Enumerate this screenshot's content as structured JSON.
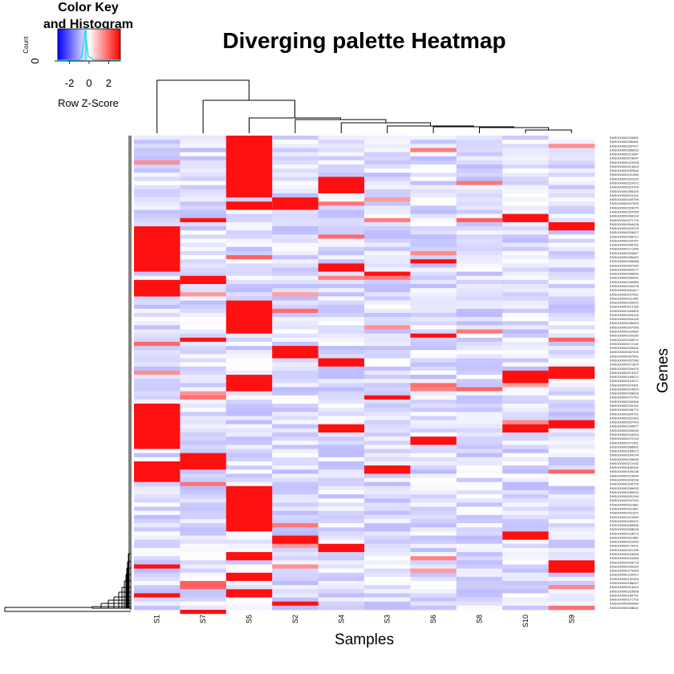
{
  "chart_data": {
    "type": "heatmap",
    "title": "Diverging palette Heatmap",
    "xlabel": "Samples",
    "ylabel": "Genes",
    "samples": [
      "S1",
      "S7",
      "S5",
      "S2",
      "S4",
      "S3",
      "S6",
      "S8",
      "S10",
      "S9"
    ],
    "palette": {
      "low": "#0000ff",
      "mid": "#ffffff",
      "high": "#ff0000"
    },
    "color_key": {
      "title": "Color Key and Histogram",
      "title_line1": "Color Key",
      "title_line2": "and Histogram",
      "xlabel": "Row Z-Score",
      "ylabel": "Count",
      "ticks": [
        "-2",
        "0",
        "2"
      ],
      "y_ticks": [
        "0"
      ],
      "range": [
        -3.2,
        3.2
      ]
    },
    "genes": [
      "ENSG00000220891",
      "ENSG00000286481",
      "ENSG00000287417",
      "ENSG00000258932",
      "ENSG00000210687",
      "ENSG00000278097",
      "ENSG00000223208",
      "ENSG00000214819",
      "ENSG00000252546",
      "ENSG00000151365",
      "ENSG00000251030",
      "ENSG00000220913",
      "ENSG00000212499",
      "ENSG00000256225",
      "ENSG00000224141",
      "ENSG00000108759",
      "ENSG00000207899",
      "ENSG00000229975",
      "ENSG00000254750",
      "ENSG00000268104",
      "ENSG00000271776",
      "ENSG00000264428",
      "ENSG00000222225",
      "ENSG00000253627",
      "ENSG00000258712",
      "ENSG00000234757",
      "ENSG00000265782",
      "ENSG00000171346",
      "ENSG00000253667",
      "ENSG00000286452",
      "ENSG00000266088",
      "ENSG00000287460",
      "ENSG00000092277",
      "ENSG00000266550",
      "ENSG00000250041",
      "ENSG00000236969",
      "ENSG00000251078",
      "ENSG00000181617",
      "ENSG00000227591",
      "ENSG00000211946",
      "ENSG00000235002",
      "ENSG00000212766",
      "ENSG00000160825",
      "ENSG00000234146",
      "ENSG00000254109",
      "ENSG00000236054",
      "ENSG00000257956",
      "ENSG00000222560",
      "ENSG00000100180",
      "ENSG00000206570",
      "ENSG00000172116",
      "ENSG00000249526",
      "ENSG00000287209",
      "ENSG00000257541",
      "ENSG00000257286",
      "ENSG00000271824",
      "ENSG00000249475",
      "ENSG00000213107",
      "ENSG00000198074",
      "ENSG00000118271",
      "ENSG00000224361",
      "ENSG00000224594",
      "ENSG00000158639",
      "ENSG00000272763",
      "ENSG00000240459",
      "ENSG00000225762",
      "ENSG00000046774",
      "ENSG00000204791",
      "ENSG00000231062",
      "ENSG00000257443",
      "ENSG00000230877",
      "ENSG00000255930",
      "ENSG00000234254",
      "ENSG00000272100",
      "ENSG00000271551",
      "ENSG00000088582",
      "ENSG00000165572",
      "ENSG00000164794",
      "ENSG00000236838",
      "ENSG00000272492",
      "ENSG00000180262",
      "ENSG00000106136",
      "ENSG00000210009",
      "ENSG00000243238",
      "ENSG00000108700",
      "ENSG00000268433",
      "ENSG00000180520",
      "ENSG00000251246",
      "ENSG00000247345",
      "ENSG00000211660",
      "ENSG00000211892",
      "ENSG00000211673",
      "ENSG00000210089",
      "ENSG00000180222",
      "ENSG00000255496",
      "ENSG00000258548",
      "ENSG00000128573",
      "ENSG00000211666",
      "ENSG00000210469",
      "ENSG00000170421",
      "ENSG00000221789",
      "ENSG00000223528",
      "ENSG00000134363",
      "ENSG00000226278",
      "ENSG00000248184",
      "ENSG00000270489",
      "ENSG00000130247",
      "ENSG00000132465",
      "ENSG00000188257",
      "ENSG00000213404",
      "ENSG00000229508",
      "ENSG00000166741",
      "ENSG00000171752",
      "ENSG00000064484",
      "ENSG00000108821"
    ],
    "n_rows": 115,
    "background_zscore": -0.4,
    "highlights": [
      {
        "sample": "S5",
        "row_start": 0,
        "row_end": 15,
        "z": 3
      },
      {
        "sample": "S5",
        "row_start": 16,
        "row_end": 18,
        "z": 3
      },
      {
        "sample": "S5",
        "row_start": 40,
        "row_end": 48,
        "z": 3
      },
      {
        "sample": "S5",
        "row_start": 58,
        "row_end": 62,
        "z": 3
      },
      {
        "sample": "S5",
        "row_start": 85,
        "row_end": 96,
        "z": 3
      },
      {
        "sample": "S5",
        "row_start": 101,
        "row_end": 103,
        "z": 3
      },
      {
        "sample": "S5",
        "row_start": 106,
        "row_end": 108,
        "z": 3
      },
      {
        "sample": "S5",
        "row_start": 110,
        "row_end": 112,
        "z": 3
      },
      {
        "sample": "S1",
        "row_start": 22,
        "row_end": 33,
        "z": 3
      },
      {
        "sample": "S1",
        "row_start": 35,
        "row_end": 39,
        "z": 3
      },
      {
        "sample": "S1",
        "row_start": 65,
        "row_end": 76,
        "z": 3
      },
      {
        "sample": "S1",
        "row_start": 79,
        "row_end": 84,
        "z": 3
      },
      {
        "sample": "S1",
        "row_start": 104,
        "row_end": 105,
        "z": 3
      },
      {
        "sample": "S1",
        "row_start": 111,
        "row_end": 112,
        "z": 3
      },
      {
        "sample": "S7",
        "row_start": 34,
        "row_end": 36,
        "z": 3
      },
      {
        "sample": "S7",
        "row_start": 20,
        "row_end": 21,
        "z": 3
      },
      {
        "sample": "S7",
        "row_start": 49,
        "row_end": 50,
        "z": 3
      },
      {
        "sample": "S7",
        "row_start": 77,
        "row_end": 81,
        "z": 3
      },
      {
        "sample": "S7",
        "row_start": 108,
        "row_end": 110,
        "z": 2
      },
      {
        "sample": "S7",
        "row_start": 115,
        "row_end": 116,
        "z": 3
      },
      {
        "sample": "S2",
        "row_start": 15,
        "row_end": 18,
        "z": 3
      },
      {
        "sample": "S2",
        "row_start": 51,
        "row_end": 54,
        "z": 3
      },
      {
        "sample": "S2",
        "row_start": 97,
        "row_end": 99,
        "z": 3
      },
      {
        "sample": "S2",
        "row_start": 113,
        "row_end": 114,
        "z": 3
      },
      {
        "sample": "S4",
        "row_start": 10,
        "row_end": 14,
        "z": 3
      },
      {
        "sample": "S4",
        "row_start": 31,
        "row_end": 33,
        "z": 3
      },
      {
        "sample": "S4",
        "row_start": 54,
        "row_end": 56,
        "z": 3
      },
      {
        "sample": "S4",
        "row_start": 70,
        "row_end": 72,
        "z": 3
      },
      {
        "sample": "S4",
        "row_start": 99,
        "row_end": 101,
        "z": 3
      },
      {
        "sample": "S3",
        "row_start": 33,
        "row_end": 34,
        "z": 3
      },
      {
        "sample": "S3",
        "row_start": 63,
        "row_end": 64,
        "z": 3
      },
      {
        "sample": "S3",
        "row_start": 80,
        "row_end": 82,
        "z": 3
      },
      {
        "sample": "S6",
        "row_start": 30,
        "row_end": 31,
        "z": 3
      },
      {
        "sample": "S6",
        "row_start": 48,
        "row_end": 49,
        "z": 3
      },
      {
        "sample": "S6",
        "row_start": 73,
        "row_end": 75,
        "z": 3
      },
      {
        "sample": "S8",
        "row_start": 20,
        "row_end": 21,
        "z": 2
      },
      {
        "sample": "S10",
        "row_start": 19,
        "row_end": 21,
        "z": 3
      },
      {
        "sample": "S10",
        "row_start": 57,
        "row_end": 60,
        "z": 3
      },
      {
        "sample": "S10",
        "row_start": 70,
        "row_end": 72,
        "z": 3
      },
      {
        "sample": "S10",
        "row_start": 96,
        "row_end": 98,
        "z": 3
      },
      {
        "sample": "S9",
        "row_start": 21,
        "row_end": 23,
        "z": 3
      },
      {
        "sample": "S9",
        "row_start": 56,
        "row_end": 59,
        "z": 3
      },
      {
        "sample": "S9",
        "row_start": 69,
        "row_end": 71,
        "z": 3
      },
      {
        "sample": "S9",
        "row_start": 103,
        "row_end": 106,
        "z": 3
      }
    ]
  }
}
